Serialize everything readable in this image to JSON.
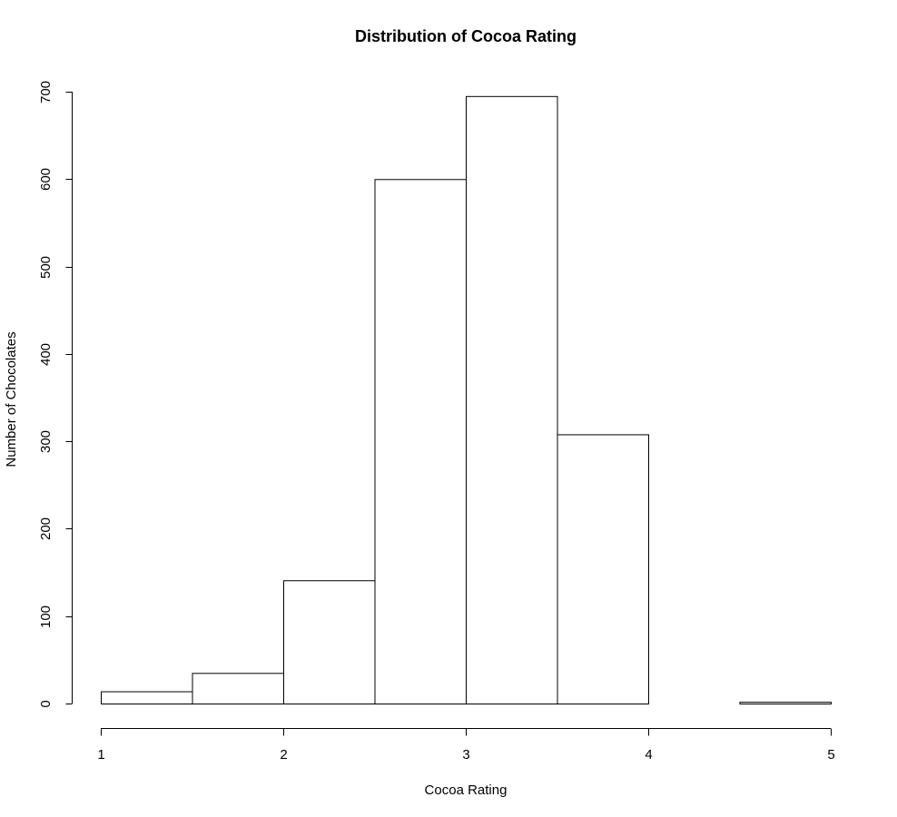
{
  "chart_data": {
    "type": "bar",
    "title": "Distribution of Cocoa Rating",
    "xlabel": "Cocoa Rating",
    "ylabel": "Number of Chocolates",
    "bins": [
      {
        "start": 1.0,
        "end": 1.5,
        "count": 14
      },
      {
        "start": 1.5,
        "end": 2.0,
        "count": 35
      },
      {
        "start": 2.0,
        "end": 2.5,
        "count": 141
      },
      {
        "start": 2.5,
        "end": 3.0,
        "count": 600
      },
      {
        "start": 3.0,
        "end": 3.5,
        "count": 695
      },
      {
        "start": 3.5,
        "end": 4.0,
        "count": 308
      },
      {
        "start": 4.0,
        "end": 4.5,
        "count": 0
      },
      {
        "start": 4.5,
        "end": 5.0,
        "count": 2
      }
    ],
    "xlim": [
      1,
      5
    ],
    "ylim": [
      0,
      700
    ],
    "x_ticks": [
      1,
      2,
      3,
      4,
      5
    ],
    "y_ticks": [
      0,
      100,
      200,
      300,
      400,
      500,
      600,
      700
    ],
    "grid": false,
    "legend": "none",
    "colors": {
      "bar_fill": "#ffffff",
      "bar_stroke": "#000000"
    }
  }
}
